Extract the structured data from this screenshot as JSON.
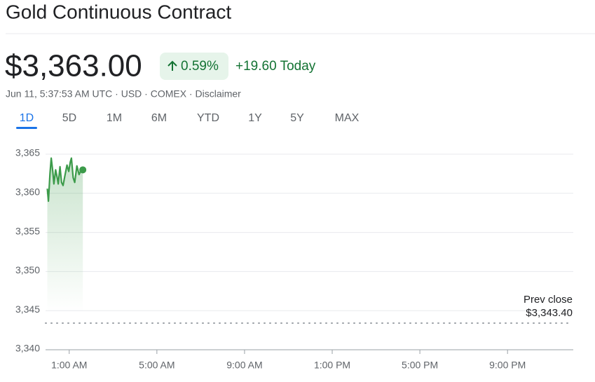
{
  "header": {
    "title": "Gold Continuous Contract",
    "price": "$3,363.00",
    "change_percent": "0.59%",
    "change_today": "+19.60 Today",
    "meta": "Jun 11, 5:37:53 AM UTC · USD · COMEX · Disclaimer"
  },
  "tabs": [
    "1D",
    "5D",
    "1M",
    "6M",
    "YTD",
    "1Y",
    "5Y",
    "MAX"
  ],
  "active_tab": "1D",
  "chart_data": {
    "type": "line",
    "x": [
      0.0,
      0.05,
      0.12,
      0.18,
      0.25,
      0.3,
      0.38,
      0.45,
      0.5,
      0.58,
      0.65,
      0.72,
      0.8,
      0.9,
      0.98,
      1.05,
      1.1,
      1.18,
      1.25,
      1.35,
      1.45,
      1.55,
      1.62
    ],
    "series": [
      {
        "color": "#3c9b4a",
        "values": [
          3360.6,
          3359.0,
          3362.5,
          3364.5,
          3362.8,
          3361.2,
          3363.0,
          3362.0,
          3361.2,
          3363.4,
          3361.4,
          3361.0,
          3362.2,
          3363.6,
          3362.8,
          3364.0,
          3364.5,
          3362.0,
          3361.4,
          3363.5,
          3362.4,
          3363.0,
          3363.0
        ]
      }
    ],
    "xlim": [
      -0.08,
      24
    ],
    "xticks": [
      {
        "value": 1,
        "label": "1:00 AM"
      },
      {
        "value": 5,
        "label": "5:00 AM"
      },
      {
        "value": 9,
        "label": "9:00 AM"
      },
      {
        "value": 13,
        "label": "1:00 PM"
      },
      {
        "value": 17,
        "label": "5:00 PM"
      },
      {
        "value": 21,
        "label": "9:00 PM"
      }
    ],
    "ylim": [
      3340,
      3365
    ],
    "yticks": [
      {
        "value": 3340,
        "label": "3,340"
      },
      {
        "value": 3345,
        "label": "3,345"
      },
      {
        "value": 3350,
        "label": "3,350"
      },
      {
        "value": 3355,
        "label": "3,355"
      },
      {
        "value": 3360,
        "label": "3,360"
      },
      {
        "value": 3365,
        "label": "3,365"
      }
    ],
    "grid": true,
    "reference_line": {
      "name": "Prev close",
      "value": 3343.4,
      "label": "$3,343.40"
    }
  }
}
